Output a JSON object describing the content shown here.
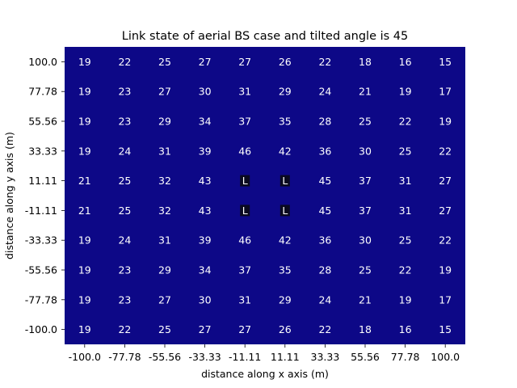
{
  "chart_data": {
    "type": "heatmap",
    "title": "Link state of aerial BS case and tilted angle is 45",
    "xlabel": "distance along x axis (m)",
    "ylabel": "distance along y axis (m)",
    "x_tick_labels": [
      "-100.0",
      "-77.78",
      "-55.56",
      "-33.33",
      "-11.11",
      "11.11",
      "33.33",
      "55.56",
      "77.78",
      "100.0"
    ],
    "y_tick_labels": [
      "100.0",
      "77.78",
      "55.56",
      "33.33",
      "11.11",
      "-11.11",
      "-33.33",
      "-55.56",
      "-77.78",
      "-100.0"
    ],
    "cell_labels": [
      [
        "19",
        "22",
        "25",
        "27",
        "27",
        "26",
        "22",
        "18",
        "16",
        "15"
      ],
      [
        "19",
        "23",
        "27",
        "30",
        "31",
        "29",
        "24",
        "21",
        "19",
        "17"
      ],
      [
        "19",
        "23",
        "29",
        "34",
        "37",
        "35",
        "28",
        "25",
        "22",
        "19"
      ],
      [
        "19",
        "24",
        "31",
        "39",
        "46",
        "42",
        "36",
        "30",
        "25",
        "22"
      ],
      [
        "21",
        "25",
        "32",
        "43",
        "L",
        "L",
        "45",
        "37",
        "31",
        "27"
      ],
      [
        "21",
        "25",
        "32",
        "43",
        "L",
        "L",
        "45",
        "37",
        "31",
        "27"
      ],
      [
        "19",
        "24",
        "31",
        "39",
        "46",
        "42",
        "36",
        "30",
        "25",
        "22"
      ],
      [
        "19",
        "23",
        "29",
        "34",
        "37",
        "35",
        "28",
        "25",
        "22",
        "19"
      ],
      [
        "19",
        "23",
        "27",
        "30",
        "31",
        "29",
        "24",
        "21",
        "19",
        "17"
      ],
      [
        "19",
        "22",
        "25",
        "27",
        "27",
        "26",
        "22",
        "18",
        "16",
        "15"
      ]
    ],
    "colors": {
      "cell_fill": "#0d0887",
      "los_cell_fill": "#0a0a20",
      "cell_text": "#ffffff"
    },
    "colorbar": false,
    "grid": false
  }
}
